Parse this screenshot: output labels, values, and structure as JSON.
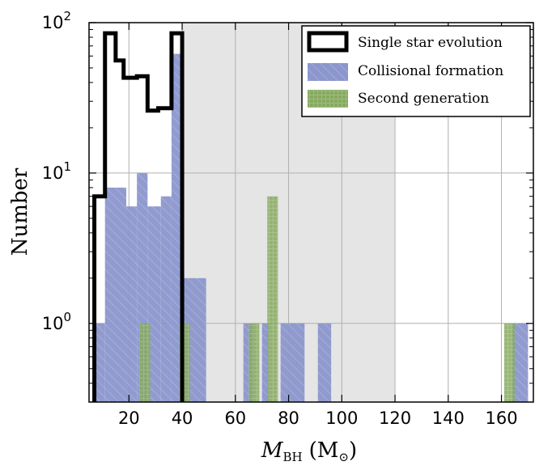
{
  "chart_data": {
    "type": "histogram",
    "xlabel_main": "M",
    "xlabel_sub": "BH",
    "xlabel_unit_open": "(M",
    "xlabel_unit_sub": "⊙",
    "xlabel_unit_close": ")",
    "ylabel": "Number",
    "x_ticks": [
      "20",
      "40",
      "60",
      "80",
      "100",
      "120",
      "140",
      "160"
    ],
    "y_ticks": [
      {
        "base": "10",
        "exp": "0"
      },
      {
        "base": "10",
        "exp": "1"
      },
      {
        "base": "10",
        "exp": "2"
      }
    ],
    "xlim": [
      5,
      172
    ],
    "ylim": [
      0.3,
      100
    ],
    "yscale": "log",
    "grid": true,
    "shaded_region": {
      "x_start": 40,
      "x_end": 120,
      "color": "#e5e5e5"
    },
    "legend_position": "upper-right",
    "series": [
      {
        "name": "Single star evolution",
        "style": "step",
        "color": "#000000",
        "bins": [
          [
            7,
            11,
            7
          ],
          [
            11,
            15,
            85
          ],
          [
            15,
            18,
            56
          ],
          [
            18,
            23,
            43
          ],
          [
            23,
            27,
            44
          ],
          [
            27,
            31,
            26
          ],
          [
            31,
            36,
            27
          ],
          [
            36,
            40,
            85
          ]
        ]
      },
      {
        "name": "Collisional formation",
        "style": "bar",
        "color": "#8b96cc",
        "hatch": true,
        "bins": [
          [
            7,
            11,
            1
          ],
          [
            11,
            19,
            8
          ],
          [
            19,
            23,
            6
          ],
          [
            23,
            27,
            10
          ],
          [
            27,
            32,
            6
          ],
          [
            32,
            36,
            7
          ],
          [
            36,
            40,
            62
          ],
          [
            40,
            49,
            2
          ],
          [
            63,
            67,
            1
          ],
          [
            70,
            73,
            1
          ],
          [
            77,
            86,
            1
          ],
          [
            91,
            96,
            1
          ],
          [
            164,
            170,
            1
          ]
        ]
      },
      {
        "name": "Second generation",
        "style": "bar",
        "color": "#85a85f",
        "hatch": true,
        "bins": [
          [
            24,
            28,
            1
          ],
          [
            39,
            43,
            1
          ],
          [
            65,
            69,
            1
          ],
          [
            72,
            76,
            7
          ],
          [
            161,
            165,
            1
          ]
        ]
      }
    ]
  }
}
